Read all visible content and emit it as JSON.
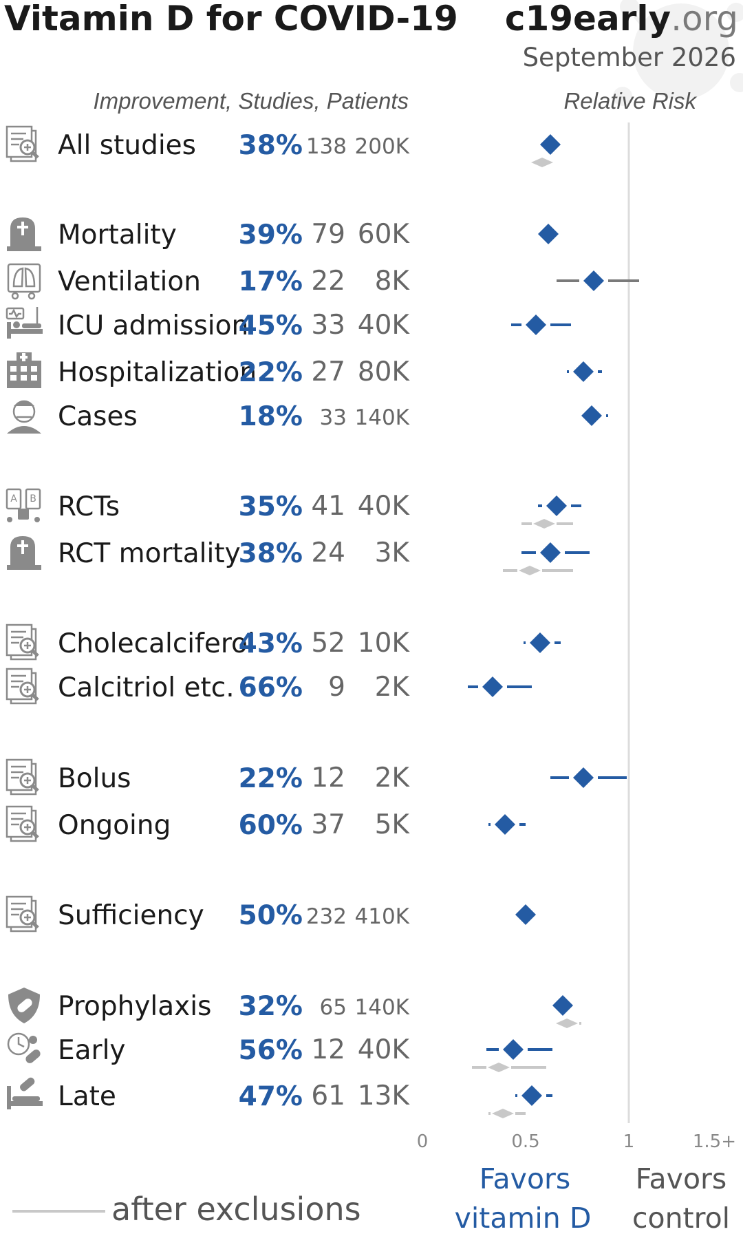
{
  "header": {
    "title": "Vitamin D for COVID-19",
    "brand_main": "c19early",
    "brand_tld": ".org",
    "date": "September 2026",
    "columns_label": "Improvement, Studies, Patients",
    "rr_label": "Relative Risk"
  },
  "colors": {
    "accent": "#245ba3",
    "exclusion": "#c8c8c8",
    "text": "#1a1a1a",
    "muted": "#666666",
    "ref_line": "#dcdcdc",
    "icon": "#8a8a8a"
  },
  "axis": {
    "ticks": [
      "0",
      "0.5",
      "1",
      "1.5+"
    ],
    "tick_values": [
      0,
      0.5,
      1,
      1.5
    ],
    "range": [
      0,
      1.5
    ],
    "reference": 1,
    "favors_left": [
      "Favors",
      "vitamin D"
    ],
    "favors_right": [
      "Favors",
      "control"
    ]
  },
  "legend": {
    "label": "after exclusions"
  },
  "chart_data": {
    "type": "forest",
    "title": "Vitamin D for COVID-19",
    "xlabel": "Relative Risk",
    "xlim": [
      0,
      1.5
    ],
    "rows": [
      {
        "label": "All studies",
        "icon": "study-icon",
        "improvement": "38%",
        "studies": "138",
        "patients": "200K",
        "rr": 0.62,
        "ci": null,
        "excl_rr": 0.58,
        "excl_ci": null
      },
      {
        "label": "Mortality",
        "icon": "tombstone-icon",
        "improvement": "39%",
        "studies": "79",
        "patients": "60K",
        "rr": 0.61,
        "ci": [
          0.57,
          0.67
        ],
        "excl_rr": null,
        "excl_ci": null
      },
      {
        "label": "Ventilation",
        "icon": "lungs-icon",
        "improvement": "17%",
        "studies": "22",
        "patients": "8K",
        "rr": 0.83,
        "ci": [
          0.65,
          1.05
        ],
        "excl_rr": null,
        "excl_ci": null
      },
      {
        "label": "ICU admission",
        "icon": "icu-bed-icon",
        "improvement": "45%",
        "studies": "33",
        "patients": "40K",
        "rr": 0.55,
        "ci": [
          0.43,
          0.72
        ],
        "excl_rr": null,
        "excl_ci": null
      },
      {
        "label": "Hospitalization",
        "icon": "hospital-icon",
        "improvement": "22%",
        "studies": "27",
        "patients": "80K",
        "rr": 0.78,
        "ci": [
          0.7,
          0.87
        ],
        "excl_rr": null,
        "excl_ci": null
      },
      {
        "label": "Cases",
        "icon": "sick-person-icon",
        "improvement": "18%",
        "studies": "33",
        "patients": "140K",
        "rr": 0.82,
        "ci": [
          0.75,
          0.9
        ],
        "excl_rr": null,
        "excl_ci": null
      },
      {
        "label": "RCTs",
        "icon": "rct-icon",
        "improvement": "35%",
        "studies": "41",
        "patients": "40K",
        "rr": 0.65,
        "ci": [
          0.56,
          0.77
        ],
        "excl_rr": 0.59,
        "excl_ci": [
          0.48,
          0.73
        ]
      },
      {
        "label": "RCT mortality",
        "icon": "tombstone-icon",
        "improvement": "38%",
        "studies": "24",
        "patients": "3K",
        "rr": 0.62,
        "ci": [
          0.48,
          0.81
        ],
        "excl_rr": 0.52,
        "excl_ci": [
          0.39,
          0.73
        ]
      },
      {
        "label": "Cholecalciferol",
        "icon": "study-icon",
        "improvement": "43%",
        "studies": "52",
        "patients": "10K",
        "rr": 0.57,
        "ci": [
          0.49,
          0.67
        ],
        "excl_rr": null,
        "excl_ci": null
      },
      {
        "label": "Calcitriol etc.",
        "icon": "study-icon",
        "improvement": "66%",
        "studies": "9",
        "patients": "2K",
        "rr": 0.34,
        "ci": [
          0.22,
          0.53
        ],
        "excl_rr": null,
        "excl_ci": null
      },
      {
        "label": "Bolus",
        "icon": "study-icon",
        "improvement": "22%",
        "studies": "12",
        "patients": "2K",
        "rr": 0.78,
        "ci": [
          0.62,
          0.99
        ],
        "excl_rr": null,
        "excl_ci": null
      },
      {
        "label": "Ongoing",
        "icon": "study-icon",
        "improvement": "60%",
        "studies": "37",
        "patients": "5K",
        "rr": 0.4,
        "ci": [
          0.32,
          0.5
        ],
        "excl_rr": null,
        "excl_ci": null
      },
      {
        "label": "Sufficiency",
        "icon": "study-icon",
        "improvement": "50%",
        "studies": "232",
        "patients": "410K",
        "rr": 0.5,
        "ci": null,
        "excl_rr": null,
        "excl_ci": null
      },
      {
        "label": "Prophylaxis",
        "icon": "shield-pill-icon",
        "improvement": "32%",
        "studies": "65",
        "patients": "140K",
        "rr": 0.68,
        "ci": [
          0.63,
          0.74
        ],
        "excl_rr": 0.7,
        "excl_ci": [
          0.65,
          0.77
        ]
      },
      {
        "label": "Early",
        "icon": "clock-pill-icon",
        "improvement": "56%",
        "studies": "12",
        "patients": "40K",
        "rr": 0.44,
        "ci": [
          0.31,
          0.63
        ],
        "excl_rr": 0.37,
        "excl_ci": [
          0.24,
          0.6
        ]
      },
      {
        "label": "Late",
        "icon": "bed-pill-icon",
        "improvement": "47%",
        "studies": "61",
        "patients": "13K",
        "rr": 0.53,
        "ci": [
          0.45,
          0.63
        ],
        "excl_rr": 0.39,
        "excl_ci": [
          0.32,
          0.5
        ]
      }
    ]
  }
}
